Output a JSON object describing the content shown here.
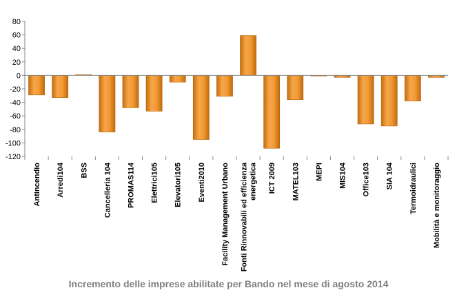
{
  "chart_data": {
    "type": "bar",
    "title": "Incremento delle imprese abilitate per Bando nel mese di agosto 2014",
    "xlabel": "",
    "ylabel": "",
    "ylim": [
      -120,
      80
    ],
    "yticks": [
      80,
      60,
      40,
      20,
      0,
      -20,
      -40,
      -60,
      -80,
      -100,
      -120
    ],
    "ytick_labels": [
      "80",
      "60",
      "40",
      "20",
      "0",
      "-20",
      "-40",
      "-60",
      "-80",
      "-100",
      "-120"
    ],
    "grid": false,
    "legend": "none",
    "bar_color": "#f0921e",
    "categories": [
      "Antincendio",
      "Arredi104",
      "BSS",
      "Cancelleria 104",
      "PROMAS114",
      "Elettrici105",
      "Elevatori105",
      "Eventi2010",
      "Facility Management Urbano",
      "Fonti Rinnovabili ed efficienza energetica",
      "ICT 2009",
      "MATEL103",
      "MEPI",
      "MIS104",
      "Office103",
      "SIA 104",
      "Termoidraulici",
      "Mobilità e monitoraggio"
    ],
    "category_label_lines": [
      [
        "Antincendio"
      ],
      [
        "Arredi104"
      ],
      [
        "BSS"
      ],
      [
        "Cancelleria 104"
      ],
      [
        "PROMAS114"
      ],
      [
        "Elettrici105"
      ],
      [
        "Elevatori105"
      ],
      [
        "Eventi2010"
      ],
      [
        "Facility Management Urbano"
      ],
      [
        "Fonti Rinnovabili ed efficienza",
        "energetica"
      ],
      [
        "ICT 2009"
      ],
      [
        "MATEL103"
      ],
      [
        "MEPI"
      ],
      [
        "MIS104"
      ],
      [
        "Office103"
      ],
      [
        "SIA 104"
      ],
      [
        "Termoidraulici"
      ],
      [
        "Mobilità e monitoraggio"
      ]
    ],
    "values": [
      -29,
      -33,
      1,
      -84,
      -48,
      -53,
      -10,
      -95,
      -31,
      59,
      -108,
      -36,
      -1,
      -3,
      -72,
      -75,
      -38,
      -3
    ]
  }
}
